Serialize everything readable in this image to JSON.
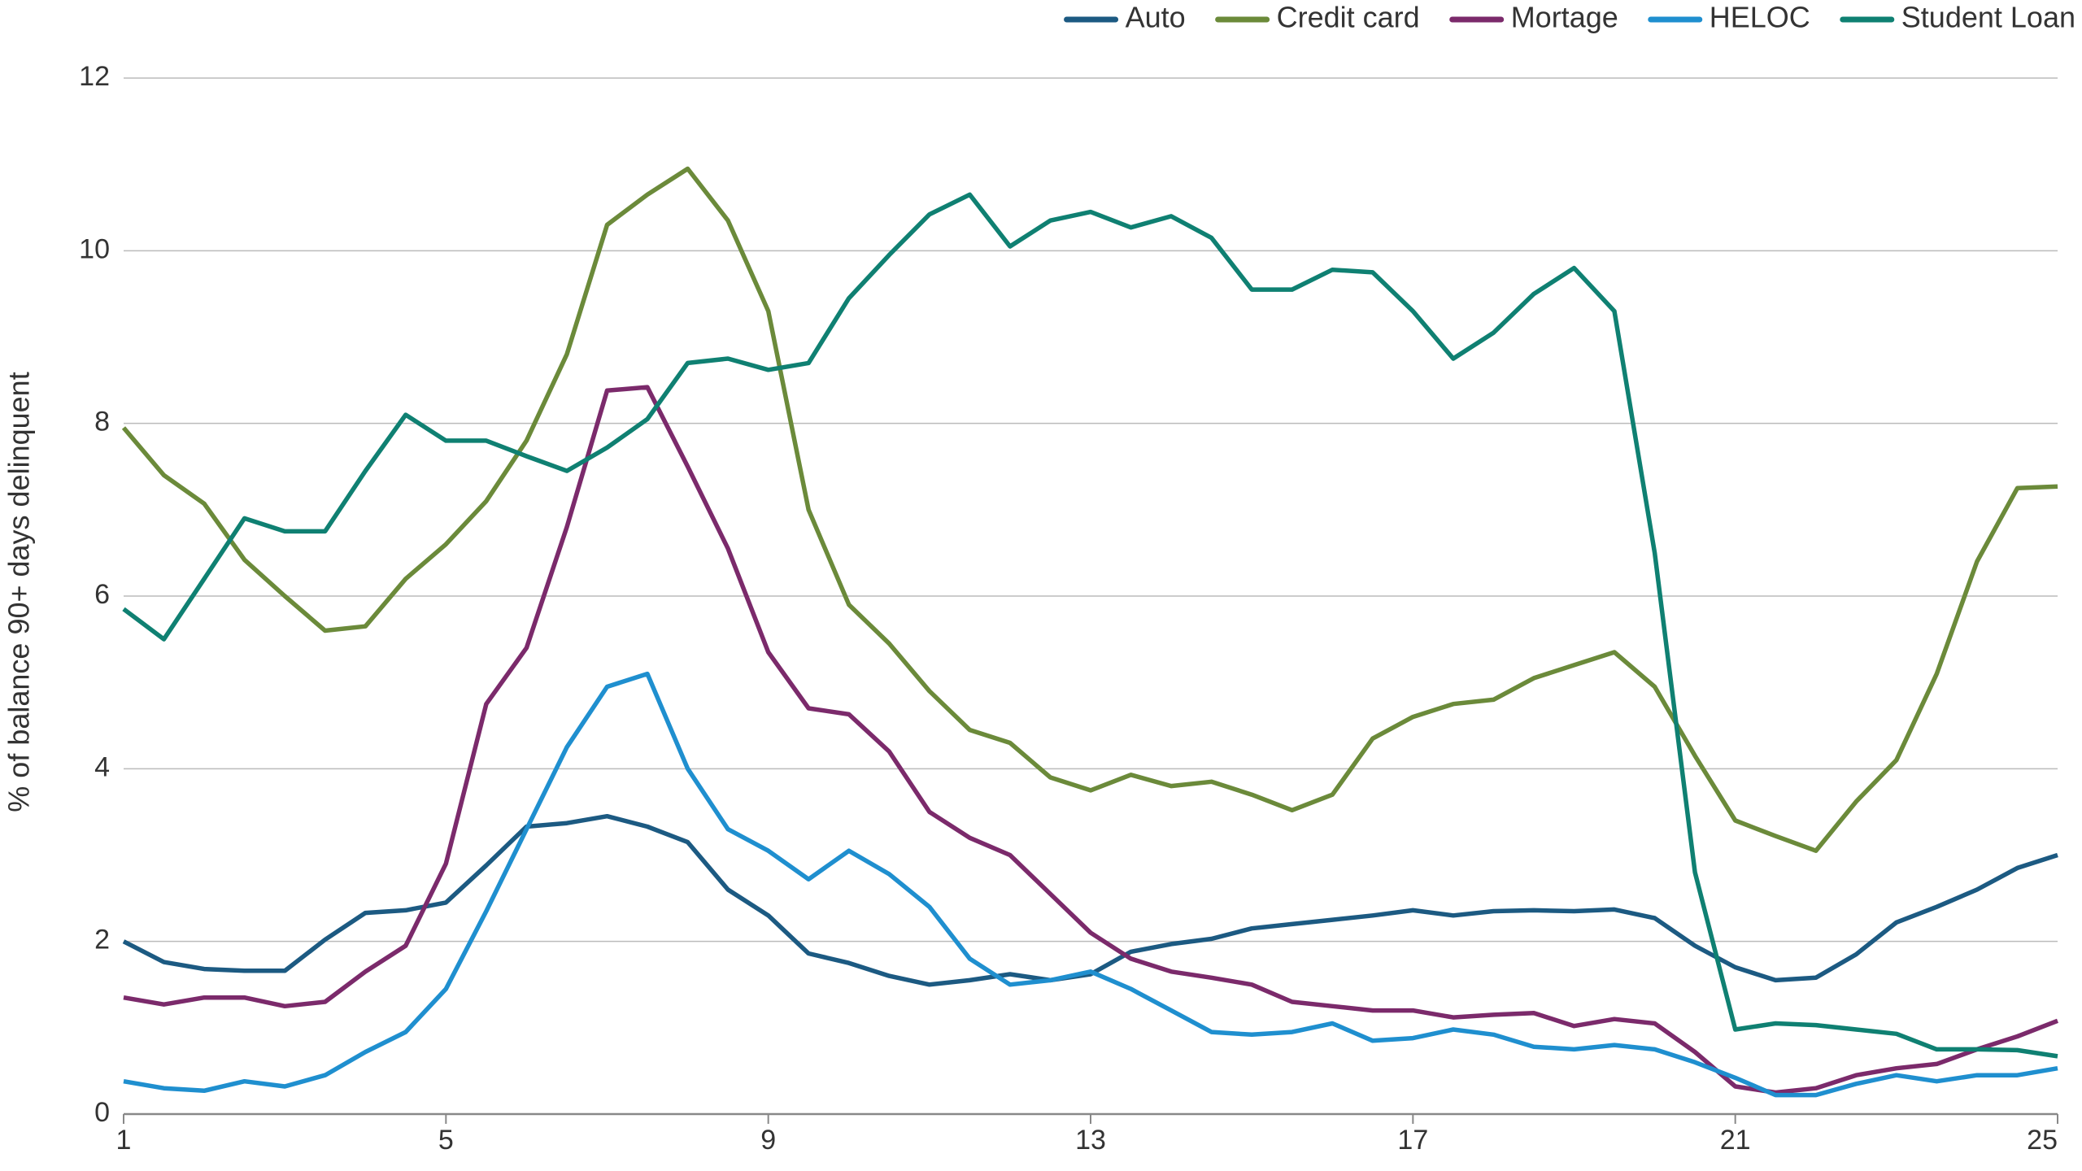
{
  "chart_data": {
    "type": "line",
    "y_label": "% of balance 90+ days delinquent",
    "x": [
      1,
      1.5,
      2,
      2.5,
      3,
      3.5,
      4,
      4.5,
      5,
      5.5,
      6,
      6.5,
      7,
      7.5,
      8,
      8.5,
      9,
      9.5,
      10,
      10.5,
      11,
      11.5,
      12,
      12.5,
      13,
      13.5,
      14,
      14.5,
      15,
      15.5,
      16,
      16.5,
      17,
      17.5,
      18,
      18.5,
      19,
      19.5,
      20,
      20.5,
      21,
      21.5,
      22,
      22.5,
      23,
      23.5,
      24,
      24.5,
      25
    ],
    "series": [
      {
        "name": "Auto",
        "color": "#1c5a82",
        "values": [
          2.0,
          1.76,
          1.68,
          1.66,
          1.66,
          2.02,
          2.33,
          2.36,
          2.45,
          2.88,
          3.33,
          3.37,
          3.45,
          3.33,
          3.15,
          2.6,
          2.3,
          1.86,
          1.75,
          1.6,
          1.5,
          1.55,
          1.62,
          1.55,
          1.62,
          1.88,
          1.97,
          2.03,
          2.15,
          2.2,
          2.25,
          2.3,
          2.36,
          2.3,
          2.35,
          2.36,
          2.35,
          2.37,
          2.27,
          1.95,
          1.7,
          1.55,
          1.58,
          1.85,
          2.22,
          2.4,
          2.6,
          2.85,
          3.0
        ]
      },
      {
        "name": "Credit card",
        "color": "#6b8a3a",
        "values": [
          7.95,
          7.4,
          7.07,
          6.42,
          6.0,
          5.6,
          5.65,
          6.2,
          6.6,
          7.1,
          7.8,
          8.8,
          10.3,
          10.65,
          10.95,
          10.35,
          9.3,
          7.0,
          5.9,
          5.45,
          4.9,
          4.45,
          4.3,
          3.9,
          3.75,
          3.93,
          3.8,
          3.85,
          3.7,
          3.52,
          3.7,
          4.35,
          4.6,
          4.75,
          4.8,
          5.05,
          5.2,
          5.35,
          4.95,
          4.15,
          3.4,
          3.22,
          3.05,
          3.62,
          4.1,
          5.1,
          6.4,
          7.25,
          7.27
        ]
      },
      {
        "name": "Mortage",
        "color": "#7b2a6b",
        "values": [
          1.35,
          1.27,
          1.35,
          1.35,
          1.25,
          1.3,
          1.65,
          1.95,
          2.9,
          4.75,
          5.4,
          6.8,
          8.38,
          8.42,
          7.5,
          6.55,
          5.35,
          4.7,
          4.63,
          4.2,
          3.5,
          3.2,
          3.0,
          2.55,
          2.1,
          1.8,
          1.65,
          1.58,
          1.5,
          1.3,
          1.25,
          1.2,
          1.2,
          1.12,
          1.15,
          1.17,
          1.02,
          1.1,
          1.05,
          0.72,
          0.32,
          0.25,
          0.3,
          0.45,
          0.53,
          0.58,
          0.75,
          0.9,
          1.08
        ]
      },
      {
        "name": "HELOC",
        "color": "#1f8fcf",
        "values": [
          0.38,
          0.3,
          0.27,
          0.38,
          0.32,
          0.45,
          0.72,
          0.95,
          1.45,
          2.35,
          3.3,
          4.25,
          4.95,
          5.1,
          4.0,
          3.3,
          3.05,
          2.72,
          3.05,
          2.78,
          2.4,
          1.8,
          1.5,
          1.55,
          1.65,
          1.45,
          1.2,
          0.95,
          0.92,
          0.95,
          1.05,
          0.85,
          0.88,
          0.98,
          0.92,
          0.78,
          0.75,
          0.8,
          0.75,
          0.6,
          0.42,
          0.22,
          0.22,
          0.35,
          0.45,
          0.38,
          0.45,
          0.45,
          0.53
        ]
      },
      {
        "name": "Student Loan",
        "color": "#0f8072",
        "values": [
          5.85,
          5.5,
          6.2,
          6.9,
          6.75,
          6.75,
          7.45,
          8.1,
          7.8,
          7.8,
          7.62,
          7.45,
          7.72,
          8.05,
          8.7,
          8.75,
          8.62,
          8.7,
          9.45,
          9.95,
          10.42,
          10.65,
          10.05,
          10.35,
          10.45,
          10.27,
          10.4,
          10.15,
          9.55,
          9.55,
          9.78,
          9.75,
          9.3,
          8.75,
          9.05,
          9.5,
          9.8,
          9.3,
          6.5,
          2.8,
          0.98,
          1.05,
          1.03,
          0.98,
          0.93,
          0.75,
          0.75,
          0.74,
          0.67
        ]
      }
    ],
    "xlim": [
      1,
      25
    ],
    "xticks": [
      1,
      5,
      9,
      13,
      17,
      21,
      25
    ],
    "ylim": [
      0,
      12
    ],
    "yticks": [
      0,
      2,
      4,
      6,
      8,
      10,
      12
    ],
    "grid": true,
    "legend": "top-right"
  }
}
